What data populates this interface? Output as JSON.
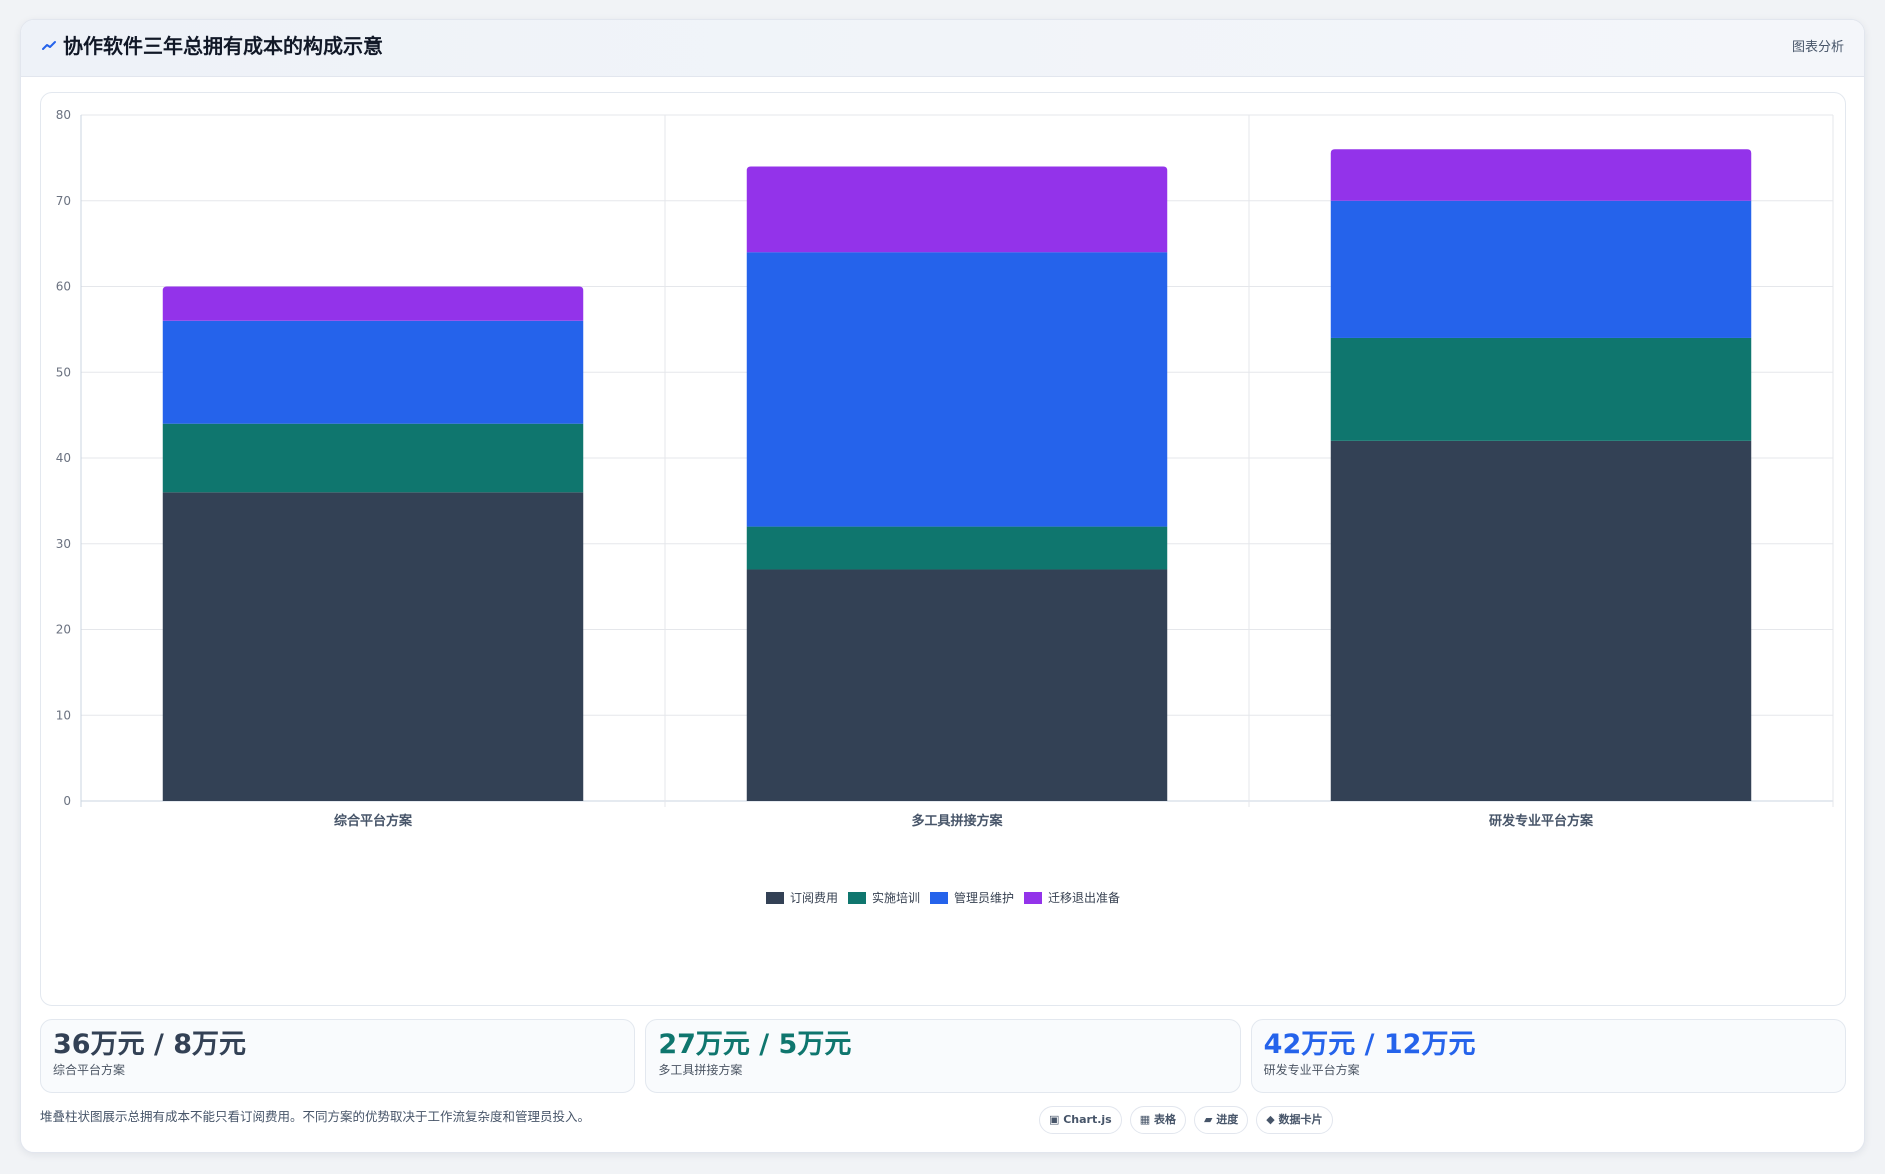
{
  "header": {
    "title": "协作软件三年总拥有成本的构成示意",
    "action_label": "图表分析",
    "icon": "trend-icon"
  },
  "chart_data": {
    "type": "bar",
    "stacked": true,
    "categories": [
      "综合平台方案",
      "多工具拼接方案",
      "研发专业平台方案"
    ],
    "series": [
      {
        "name": "订阅费用",
        "color": "#334155",
        "values": [
          36,
          27,
          42
        ]
      },
      {
        "name": "实施培训",
        "color": "#0f766e",
        "values": [
          8,
          5,
          12
        ]
      },
      {
        "name": "管理员维护",
        "color": "#2563eb",
        "values": [
          12,
          32,
          16
        ]
      },
      {
        "name": "迁移退出准备",
        "color": "#9333ea",
        "values": [
          4,
          10,
          6
        ]
      }
    ],
    "ylim": [
      0,
      80
    ],
    "yticks": [
      "0",
      "10",
      "20",
      "30",
      "40",
      "50",
      "60",
      "70",
      "80"
    ],
    "grid": true,
    "legend": "bottom"
  },
  "stats": [
    {
      "value": "36万元 / 8万元",
      "label": "综合平台方案",
      "color": "#334155"
    },
    {
      "value": "27万元 / 5万元",
      "label": "多工具拼接方案",
      "color": "#0f766e"
    },
    {
      "value": "42万元 / 12万元",
      "label": "研发专业平台方案",
      "color": "#2563eb"
    }
  ],
  "footnote": "堆叠柱状图展示总拥有成本不能只看订阅费用。不同方案的优势取决于工作流复杂度和管理员投入。",
  "chips": [
    {
      "label": "▣ Chart.js"
    },
    {
      "label": "▦ 表格"
    },
    {
      "label": "▰ 进度"
    },
    {
      "label": "◆ 数据卡片"
    }
  ]
}
